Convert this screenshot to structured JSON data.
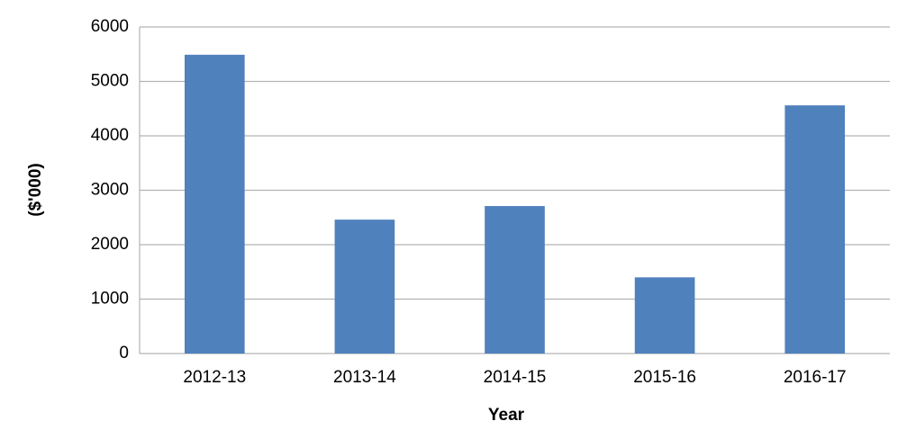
{
  "chart_data": {
    "type": "bar",
    "x_label": "Year",
    "y_label": "($'000)",
    "categories": [
      "2012-13",
      "2013-14",
      "2014-15",
      "2015-16",
      "2016-17"
    ],
    "values": [
      5490,
      2460,
      2710,
      1400,
      4560
    ],
    "color": "#4f81bd",
    "ylim": [
      0,
      6000
    ],
    "yticks": [
      0,
      1000,
      2000,
      3000,
      4000,
      5000,
      6000
    ],
    "grid": true
  }
}
